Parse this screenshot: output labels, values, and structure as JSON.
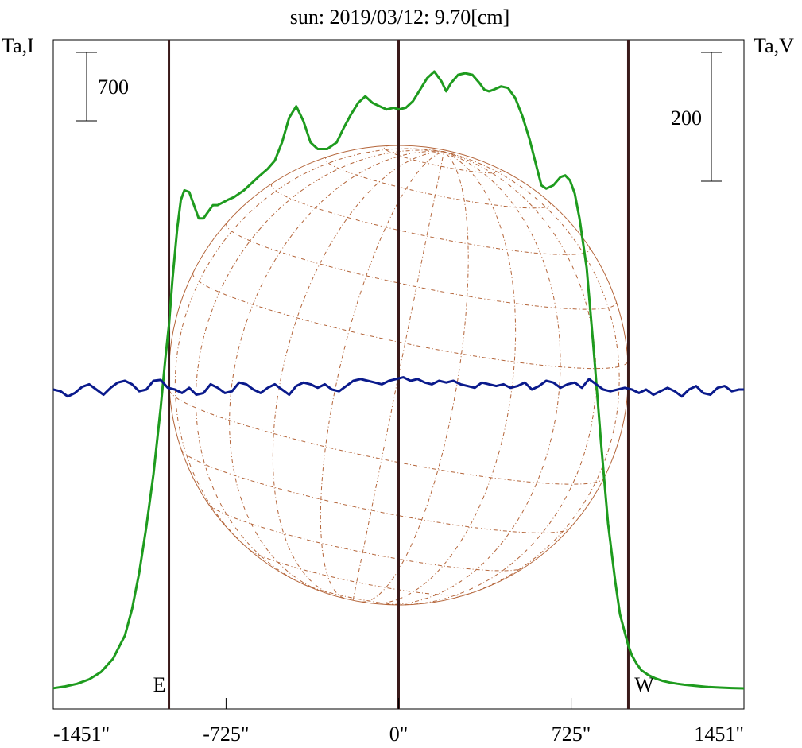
{
  "chart_data": {
    "type": "line",
    "title": "sun: 2019/03/12: 9.70[cm]",
    "title_color": "#1a1a66",
    "ylabel_left": "Ta,I",
    "ylabel_right": "Ta,V",
    "x_tick_labels": [
      "-1451\"",
      "-725\"",
      "0\"",
      "725\"",
      "1451\""
    ],
    "xlim": [
      -1451,
      1451
    ],
    "x_ticks": [
      -1451,
      -725,
      0,
      725,
      1451
    ],
    "scale_left": {
      "label": "700",
      "value": 700
    },
    "scale_right": {
      "label": "200",
      "value": 200
    },
    "limb_markers": [
      {
        "x": -965,
        "label": "E"
      },
      {
        "x": 0,
        "label": ""
      },
      {
        "x": 965,
        "label": "W"
      }
    ],
    "colors": {
      "intensity": "#1e9b1e",
      "polarization": "#0a1a8c",
      "limb_lines": "#3a1a1a",
      "solar_disk": "#b4653a",
      "axes": "#000000"
    },
    "series": [
      {
        "name": "I",
        "axis": "left",
        "x": [
          -1451,
          -1400,
          -1350,
          -1300,
          -1250,
          -1200,
          -1150,
          -1120,
          -1090,
          -1060,
          -1030,
          -1000,
          -980,
          -965,
          -950,
          -930,
          -915,
          -900,
          -880,
          -860,
          -840,
          -820,
          -800,
          -780,
          -760,
          -720,
          -690,
          -650,
          -620,
          -590,
          -550,
          -520,
          -490,
          -460,
          -430,
          -400,
          -370,
          -340,
          -300,
          -260,
          -230,
          -200,
          -170,
          -140,
          -110,
          -80,
          -50,
          -20,
          0,
          30,
          60,
          90,
          120,
          150,
          180,
          200,
          220,
          250,
          280,
          310,
          340,
          360,
          380,
          400,
          430,
          460,
          490,
          520,
          550,
          580,
          600,
          620,
          650,
          680,
          700,
          720,
          740,
          760,
          790,
          820,
          850,
          880,
          910,
          930,
          950,
          965,
          980,
          1000,
          1020,
          1050,
          1080,
          1110,
          1140,
          1170,
          1200,
          1250,
          1300,
          1350,
          1400,
          1451
        ],
        "y": [
          1.0,
          12,
          28,
          55,
          100,
          180,
          320,
          480,
          700,
          980,
          1300,
          1700,
          2000,
          2200,
          2480,
          2790,
          2960,
          3020,
          3010,
          2930,
          2850,
          2850,
          2890,
          2930,
          2930,
          2960,
          2980,
          3020,
          3060,
          3100,
          3150,
          3200,
          3310,
          3460,
          3530,
          3440,
          3310,
          3270,
          3270,
          3310,
          3400,
          3480,
          3550,
          3590,
          3550,
          3530,
          3510,
          3520,
          3510,
          3520,
          3560,
          3630,
          3700,
          3740,
          3680,
          3620,
          3670,
          3720,
          3730,
          3720,
          3670,
          3630,
          3620,
          3630,
          3650,
          3640,
          3580,
          3470,
          3330,
          3160,
          3050,
          3030,
          3050,
          3100,
          3110,
          3080,
          3000,
          2850,
          2550,
          2050,
          1500,
          1000,
          650,
          450,
          340,
          260,
          200,
          150,
          110,
          80,
          60,
          45,
          35,
          28,
          22,
          15,
          8,
          5,
          2,
          0
        ]
      },
      {
        "name": "V",
        "axis": "right",
        "x": [
          -1451,
          -1420,
          -1390,
          -1360,
          -1330,
          -1300,
          -1270,
          -1240,
          -1210,
          -1180,
          -1150,
          -1120,
          -1090,
          -1060,
          -1030,
          -1000,
          -970,
          -940,
          -910,
          -880,
          -850,
          -820,
          -790,
          -760,
          -730,
          -700,
          -670,
          -640,
          -610,
          -580,
          -550,
          -520,
          -490,
          -460,
          -430,
          -400,
          -370,
          -340,
          -310,
          -280,
          -250,
          -220,
          -190,
          -160,
          -130,
          -100,
          -70,
          -40,
          -10,
          20,
          50,
          80,
          110,
          140,
          170,
          200,
          230,
          260,
          290,
          320,
          350,
          380,
          410,
          440,
          470,
          500,
          530,
          560,
          590,
          620,
          650,
          680,
          710,
          740,
          770,
          800,
          830,
          860,
          890,
          920,
          950,
          980,
          1010,
          1040,
          1070,
          1100,
          1130,
          1160,
          1190,
          1220,
          1250,
          1280,
          1310,
          1340,
          1370,
          1400,
          1430,
          1451
        ],
        "y": [
          0,
          -2,
          -8,
          -4,
          3,
          6,
          0,
          -6,
          2,
          8,
          10,
          6,
          -2,
          0,
          10,
          11,
          2,
          0,
          -4,
          2,
          -6,
          -4,
          6,
          2,
          -4,
          -2,
          8,
          6,
          0,
          -4,
          2,
          6,
          0,
          -6,
          4,
          8,
          6,
          2,
          6,
          0,
          -2,
          4,
          10,
          12,
          10,
          8,
          6,
          10,
          12,
          14,
          10,
          12,
          8,
          6,
          10,
          8,
          10,
          6,
          4,
          2,
          8,
          6,
          4,
          6,
          2,
          4,
          8,
          0,
          4,
          10,
          8,
          2,
          6,
          8,
          2,
          12,
          6,
          0,
          -2,
          0,
          2,
          0,
          -4,
          0,
          -6,
          -2,
          2,
          -2,
          -8,
          0,
          4,
          -4,
          -6,
          2,
          4,
          -2,
          0,
          0
        ]
      }
    ]
  }
}
